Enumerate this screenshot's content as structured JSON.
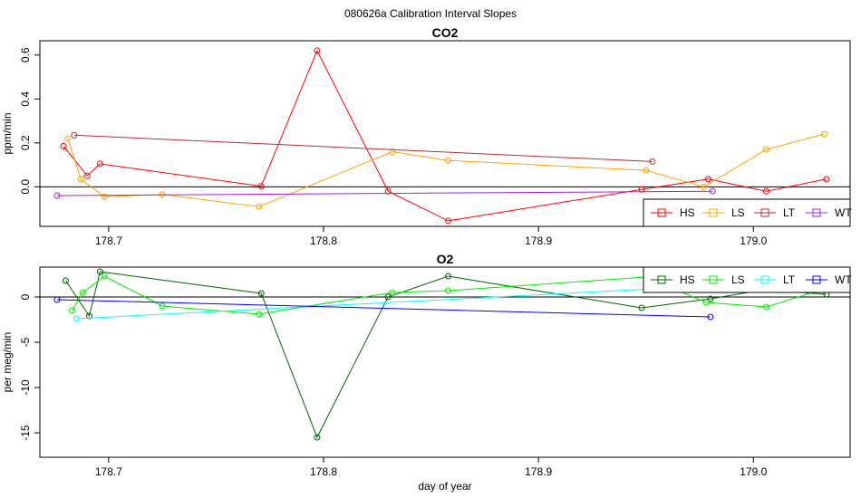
{
  "figure": {
    "title": "080626a   Calibration Interval Slopes"
  },
  "chart_data": [
    {
      "type": "line",
      "title": "CO2",
      "xlabel": "",
      "ylabel": "ppm/min",
      "xlim": [
        178.668,
        179.045
      ],
      "ylim": [
        -0.18,
        0.665
      ],
      "xticks": [
        178.7,
        178.8,
        178.9,
        179.0
      ],
      "xtick_labels": [
        "178.7",
        "178.8",
        "178.9",
        "179.0"
      ],
      "yticks": [
        0.0,
        0.2,
        0.4,
        0.6
      ],
      "ytick_labels": [
        "0.0",
        "0.2",
        "0.4",
        "0.6"
      ],
      "hline": 0,
      "legend_position": "bottom-right",
      "series": [
        {
          "name": "HS",
          "color": "#ff0000",
          "x": [
            178.679,
            178.69,
            178.696,
            178.771,
            178.797,
            178.83,
            178.858,
            178.948,
            178.979,
            179.006,
            179.034
          ],
          "y": [
            0.185,
            0.05,
            0.105,
            0.003,
            0.62,
            -0.02,
            -0.155,
            -0.012,
            0.035,
            -0.02,
            0.035
          ]
        },
        {
          "name": "LS",
          "color": "#ffa500",
          "x": [
            178.681,
            178.687,
            178.698,
            178.725,
            178.77,
            178.832,
            178.858,
            178.95,
            178.977,
            179.006,
            179.033
          ],
          "y": [
            0.22,
            0.035,
            -0.045,
            -0.035,
            -0.09,
            0.16,
            0.12,
            0.075,
            0.0,
            0.17,
            0.24
          ]
        },
        {
          "name": "LT",
          "color": "#b03030",
          "x": [
            178.684,
            178.953
          ],
          "y": [
            0.235,
            0.115
          ]
        },
        {
          "name": "WT",
          "color": "#a020f0",
          "x": [
            178.676,
            178.981
          ],
          "y": [
            -0.04,
            -0.02
          ]
        }
      ]
    },
    {
      "type": "line",
      "title": "O2",
      "xlabel": "day of year",
      "ylabel": "per meg/min",
      "xlim": [
        178.668,
        179.045
      ],
      "ylim": [
        -17.7,
        3.3
      ],
      "xticks": [
        178.7,
        178.8,
        178.9,
        179.0
      ],
      "xtick_labels": [
        "178.7",
        "178.8",
        "178.9",
        "179.0"
      ],
      "yticks": [
        -15,
        -10,
        -5,
        0
      ],
      "ytick_labels": [
        "-15",
        "-10",
        "-5",
        "0"
      ],
      "hline": 0,
      "legend_position": "top-right",
      "series": [
        {
          "name": "HS",
          "color": "#006400",
          "x": [
            178.68,
            178.691,
            178.696,
            178.771,
            178.797,
            178.83,
            178.858,
            178.948,
            178.98,
            179.005,
            179.034
          ],
          "y": [
            1.8,
            -2.1,
            2.8,
            0.4,
            -15.5,
            0.0,
            2.3,
            -1.2,
            -0.2,
            0.8,
            0.3
          ]
        },
        {
          "name": "LS",
          "color": "#00ee00",
          "x": [
            178.683,
            178.688,
            178.698,
            178.725,
            178.77,
            178.832,
            178.858,
            178.95,
            178.978,
            179.006,
            179.033
          ],
          "y": [
            -1.5,
            0.5,
            2.3,
            -1.0,
            -1.9,
            0.5,
            0.7,
            2.2,
            -0.6,
            -1.1,
            0.9
          ]
        },
        {
          "name": "LT",
          "color": "#00ffff",
          "x": [
            178.685,
            178.953
          ],
          "y": [
            -2.4,
            0.9
          ]
        },
        {
          "name": "WT",
          "color": "#0000ff",
          "x": [
            178.676,
            178.98
          ],
          "y": [
            -0.3,
            -2.2
          ]
        }
      ]
    }
  ]
}
